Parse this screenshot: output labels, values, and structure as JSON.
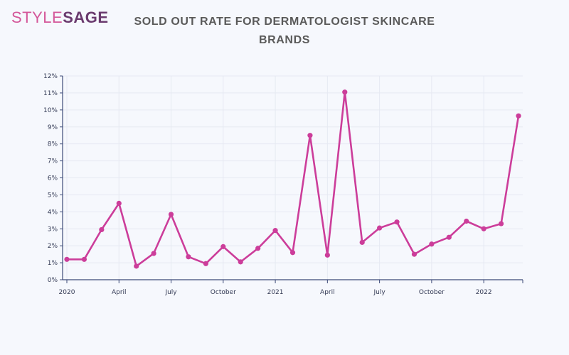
{
  "brand": {
    "part1": "STYLE",
    "part2": "SAGE"
  },
  "colors": {
    "line": "#cc3d9a",
    "axis": "#3c4a78",
    "grid": "#e6e9f2"
  },
  "chart_data": {
    "type": "line",
    "title": "SOLD OUT RATE FOR DERMATOLOGIST SKINCARE BRANDS",
    "title_lines": [
      "SOLD OUT RATE FOR DERMATOLOGIST SKINCARE",
      "BRANDS"
    ],
    "xlabel": "",
    "ylabel": "",
    "ylim": [
      0,
      12
    ],
    "yticks": [
      0,
      1,
      2,
      3,
      4,
      5,
      6,
      7,
      8,
      9,
      10,
      11,
      12
    ],
    "ytick_labels": [
      "0%",
      "1%",
      "2%",
      "3%",
      "4%",
      "5%",
      "6%",
      "7%",
      "8%",
      "9%",
      "10%",
      "11%",
      "12%"
    ],
    "x_axis": {
      "start": "2020-01",
      "end": "2022-03"
    },
    "xticks": [
      "2020-01",
      "2020-04",
      "2020-07",
      "2020-10",
      "2021-01",
      "2021-04",
      "2021-07",
      "2021-10",
      "2022-01"
    ],
    "xtick_labels": [
      "2020",
      "April",
      "July",
      "October",
      "2021",
      "April",
      "July",
      "October",
      "2022"
    ],
    "grid": true,
    "series": [
      {
        "x": [
          "2020-01",
          "2020-02",
          "2020-03",
          "2020-04",
          "2020-05",
          "2020-06",
          "2020-07",
          "2020-08",
          "2020-09",
          "2020-10",
          "2020-11",
          "2020-12",
          "2021-01",
          "2021-02",
          "2021-03",
          "2021-04",
          "2021-05",
          "2021-06",
          "2021-07",
          "2021-08",
          "2021-09",
          "2021-10",
          "2021-11",
          "2021-12",
          "2022-01",
          "2022-02",
          "2022-03"
        ],
        "values": [
          1.2,
          1.2,
          2.95,
          4.5,
          0.8,
          1.55,
          3.85,
          1.35,
          0.95,
          1.95,
          1.05,
          1.85,
          2.9,
          1.6,
          8.5,
          1.45,
          11.05,
          2.2,
          3.05,
          3.4,
          1.5,
          2.1,
          2.5,
          3.45,
          3.0,
          3.3,
          9.65
        ]
      }
    ]
  }
}
